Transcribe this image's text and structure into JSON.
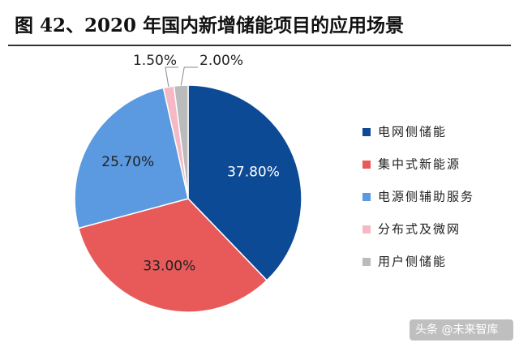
{
  "chart_data": {
    "type": "pie",
    "title": "图 42、2020 年国内新增储能项目的应用场景",
    "categories": [
      "电网侧储能",
      "集中式新能源",
      "电源侧辅助服务",
      "分布式及微网",
      "用户侧储能"
    ],
    "values": [
      37.8,
      33.0,
      25.7,
      1.5,
      2.0
    ],
    "value_labels": [
      "37.80%",
      "33.00%",
      "25.70%",
      "1.50%",
      "2.00%"
    ],
    "colors": [
      "#0c4a96",
      "#e85a5a",
      "#5b9ae0",
      "#f5b8c4",
      "#bbbbbb"
    ],
    "legend": "right",
    "watermark": "头条 @未来智库"
  }
}
